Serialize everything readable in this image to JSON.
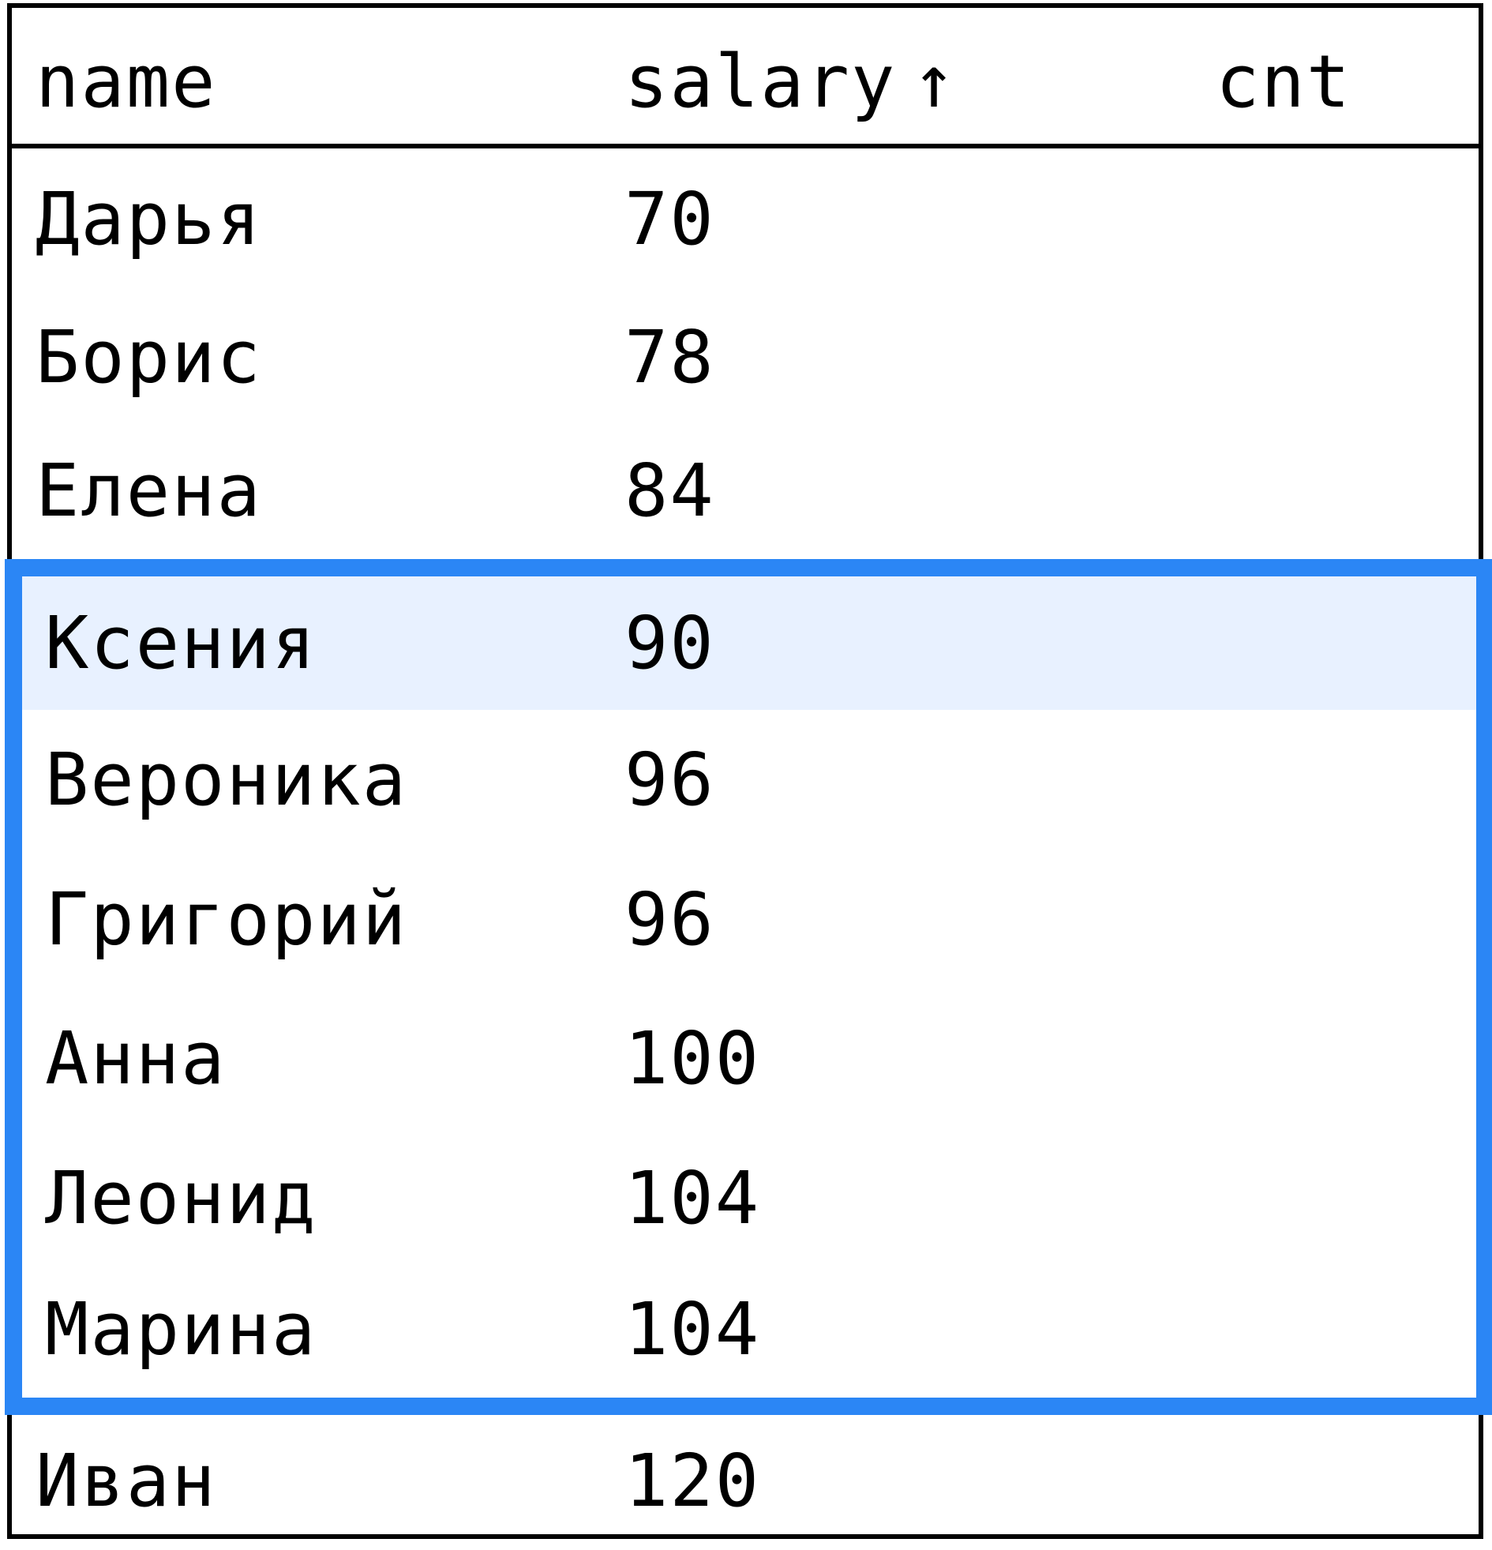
{
  "table": {
    "columns": [
      {
        "label": "name"
      },
      {
        "label": "salary",
        "sort_icon": "arrow-up-icon",
        "sort_glyph": "↑"
      },
      {
        "label": "cnt"
      }
    ],
    "rows": [
      {
        "name": "Дарья",
        "salary": "70",
        "cnt": ""
      },
      {
        "name": "Борис",
        "salary": "78",
        "cnt": ""
      },
      {
        "name": "Елена",
        "salary": "84",
        "cnt": ""
      },
      {
        "name": "Ксения",
        "salary": "90",
        "cnt": ""
      },
      {
        "name": "Вероника",
        "salary": "96",
        "cnt": ""
      },
      {
        "name": "Григорий",
        "salary": "96",
        "cnt": ""
      },
      {
        "name": "Анна",
        "salary": "100",
        "cnt": ""
      },
      {
        "name": "Леонид",
        "salary": "104",
        "cnt": ""
      },
      {
        "name": "Марина",
        "salary": "104",
        "cnt": ""
      },
      {
        "name": "Иван",
        "salary": "120",
        "cnt": ""
      }
    ]
  },
  "colors": {
    "selection_border": "#2b86f5",
    "highlight_row": "#e8f1ff",
    "grid": "#000000"
  }
}
